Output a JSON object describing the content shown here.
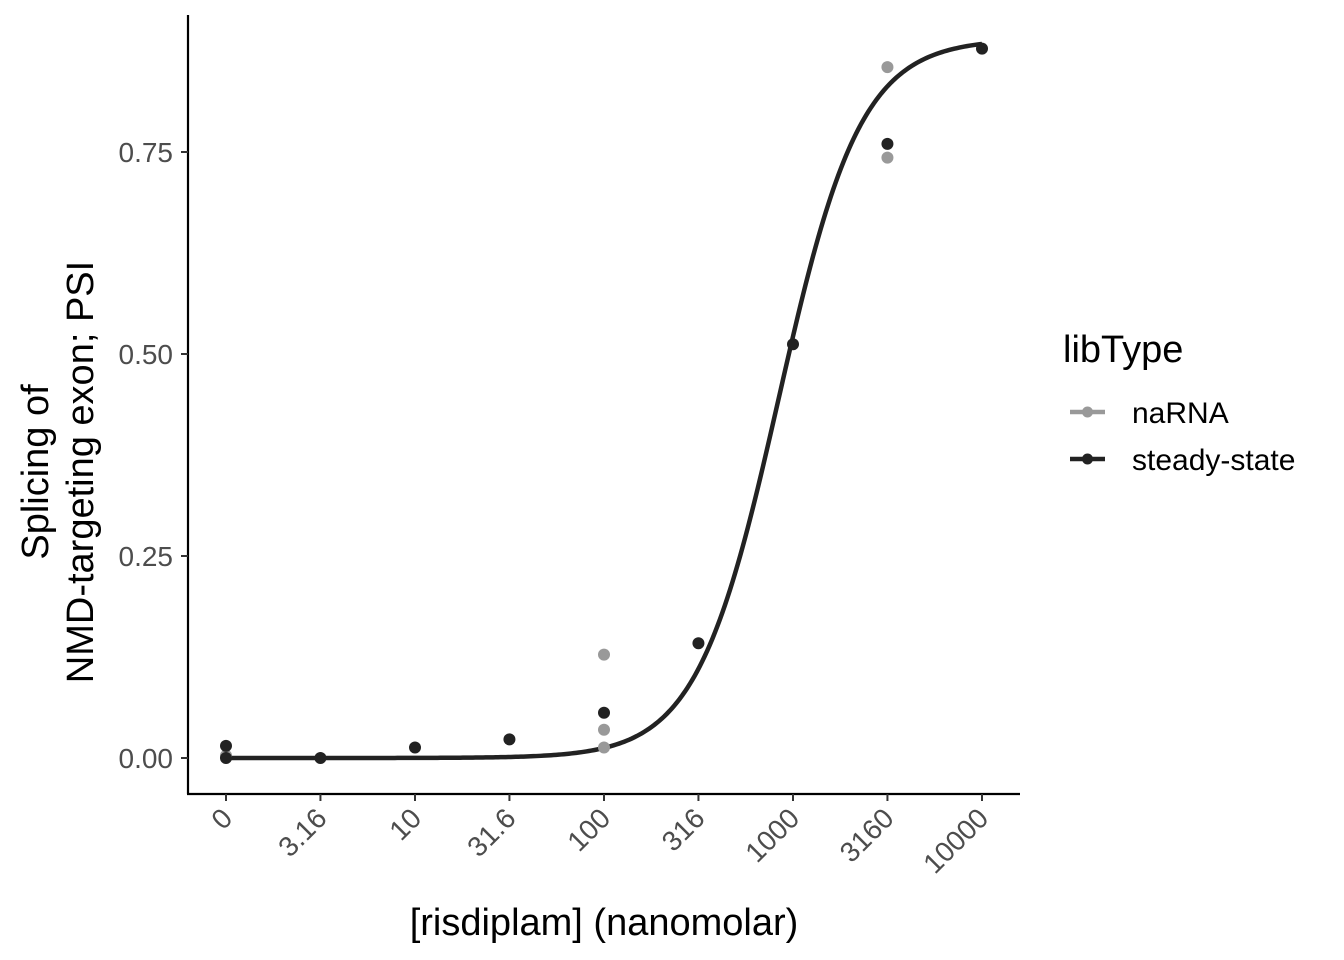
{
  "chart_data": {
    "type": "scatter",
    "title": "",
    "xlabel": "[risdiplam] (nanomolar)",
    "ylabel_lines": [
      "Splicing of",
      "NMD-targeting exon; PSI"
    ],
    "x_ticks": [
      "0",
      "3.16",
      "10",
      "31.6",
      "100",
      "316",
      "1000",
      "3160",
      "10000"
    ],
    "y_ticks": [
      "0.00",
      "0.25",
      "0.50",
      "0.75"
    ],
    "ylim": [
      -0.04,
      0.92
    ],
    "x_scale": "log10 (0 plotted at 1)",
    "grid": false,
    "legend": {
      "title": "libType",
      "position": "right",
      "entries": [
        {
          "label": "naRNA",
          "color": "#999999"
        },
        {
          "label": "steady-state",
          "color": "#222222"
        }
      ]
    },
    "series": [
      {
        "name": "naRNA",
        "color": "#999999",
        "points": [
          {
            "x": 0,
            "y": 0.003
          },
          {
            "x": 100,
            "y": 0.128
          },
          {
            "x": 100,
            "y": 0.035
          },
          {
            "x": 100,
            "y": 0.013
          },
          {
            "x": 3160,
            "y": 0.855
          },
          {
            "x": 3160,
            "y": 0.743
          }
        ]
      },
      {
        "name": "steady-state",
        "color": "#222222",
        "points": [
          {
            "x": 0,
            "y": 0.015
          },
          {
            "x": 0,
            "y": 0.0
          },
          {
            "x": 3.16,
            "y": 0.0
          },
          {
            "x": 10,
            "y": 0.013
          },
          {
            "x": 31.6,
            "y": 0.023
          },
          {
            "x": 100,
            "y": 0.056
          },
          {
            "x": 316,
            "y": 0.142
          },
          {
            "x": 1000,
            "y": 0.512
          },
          {
            "x": 3160,
            "y": 0.76
          },
          {
            "x": 10000,
            "y": 0.878
          }
        ]
      }
    ],
    "fit": {
      "color": "#222222",
      "top": 0.89,
      "bottom": 0.0,
      "ec50": 840,
      "hill": 2.0
    }
  }
}
